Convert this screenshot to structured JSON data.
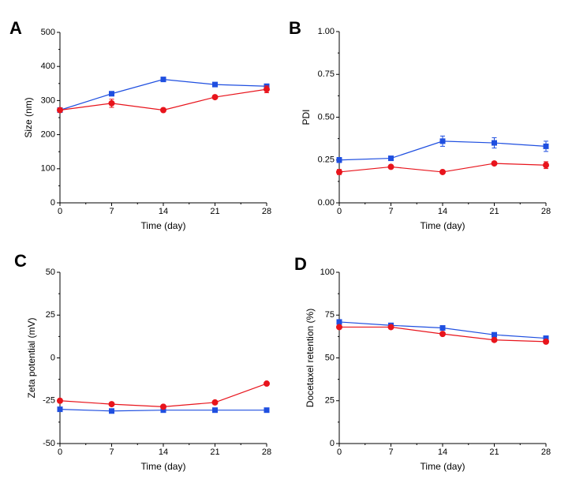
{
  "figure": {
    "colors": {
      "series_square": "#1f4fe0",
      "series_circle": "#e8141c",
      "axis": "#000000"
    }
  },
  "chart_data": [
    {
      "panel": "A",
      "type": "line",
      "title": "",
      "xlabel": "Time (day)",
      "ylabel": "Size (nm)",
      "x": [
        0,
        7,
        14,
        21,
        28
      ],
      "xlim": [
        0,
        28
      ],
      "ylim": [
        0,
        500
      ],
      "xticks": [
        "0",
        "7",
        "14",
        "21",
        "28"
      ],
      "yticks": [
        "0",
        "100",
        "200",
        "300",
        "400",
        "500"
      ],
      "ytick_values": [
        0,
        100,
        200,
        300,
        400,
        500
      ],
      "series": [
        {
          "name": "square series",
          "marker": "square",
          "color": "#1f4fe0",
          "values": [
            272,
            320,
            362,
            347,
            342
          ],
          "errors": [
            4,
            5,
            5,
            5,
            6
          ]
        },
        {
          "name": "circle series",
          "marker": "circle",
          "color": "#e8141c",
          "values": [
            272,
            292,
            272,
            310,
            333
          ],
          "errors": [
            4,
            12,
            4,
            4,
            10
          ]
        }
      ]
    },
    {
      "panel": "B",
      "type": "line",
      "title": "",
      "xlabel": "Time (day)",
      "ylabel": "PDI",
      "x": [
        0,
        7,
        14,
        21,
        28
      ],
      "xlim": [
        0,
        28
      ],
      "ylim": [
        0,
        1
      ],
      "xticks": [
        "0",
        "7",
        "14",
        "21",
        "28"
      ],
      "yticks": [
        "0.00",
        "0.25",
        "0.50",
        "0.75",
        "1.00"
      ],
      "ytick_values": [
        0,
        0.25,
        0.5,
        0.75,
        1.0
      ],
      "series": [
        {
          "name": "square series",
          "marker": "square",
          "color": "#1f4fe0",
          "values": [
            0.25,
            0.26,
            0.36,
            0.35,
            0.33
          ],
          "errors": [
            0.015,
            0.01,
            0.03,
            0.03,
            0.03
          ]
        },
        {
          "name": "circle series",
          "marker": "circle",
          "color": "#e8141c",
          "values": [
            0.18,
            0.21,
            0.18,
            0.23,
            0.22
          ],
          "errors": [
            0.015,
            0.01,
            0.01,
            0.01,
            0.02
          ]
        }
      ]
    },
    {
      "panel": "C",
      "type": "line",
      "title": "",
      "xlabel": "Time (day)",
      "ylabel": "Zeta potential (mV)",
      "x": [
        0,
        7,
        14,
        21,
        28
      ],
      "xlim": [
        0,
        28
      ],
      "ylim": [
        -50,
        50
      ],
      "xticks": [
        "0",
        "7",
        "14",
        "21",
        "28"
      ],
      "yticks": [
        "-50",
        "-25",
        "0",
        "25",
        "50"
      ],
      "ytick_values": [
        -50,
        -25,
        0,
        25,
        50
      ],
      "series": [
        {
          "name": "square series",
          "marker": "square",
          "color": "#1f4fe0",
          "values": [
            -30,
            -31,
            -30.5,
            -30.5,
            -30.5
          ],
          "errors": [
            0.5,
            0.5,
            0.5,
            0.5,
            0.5
          ]
        },
        {
          "name": "circle series",
          "marker": "circle",
          "color": "#e8141c",
          "values": [
            -25,
            -27,
            -28.5,
            -26,
            -15
          ],
          "errors": [
            0.5,
            0.5,
            0.5,
            0.5,
            0.5
          ]
        }
      ]
    },
    {
      "panel": "D",
      "type": "line",
      "title": "",
      "xlabel": "Time (day)",
      "ylabel": "Docetaxel retention (%)",
      "x": [
        0,
        7,
        14,
        21,
        28
      ],
      "xlim": [
        0,
        28
      ],
      "ylim": [
        0,
        100
      ],
      "xticks": [
        "0",
        "7",
        "14",
        "21",
        "28"
      ],
      "yticks": [
        "0",
        "25",
        "50",
        "75",
        "100"
      ],
      "ytick_values": [
        0,
        25,
        50,
        75,
        100
      ],
      "series": [
        {
          "name": "square series",
          "marker": "square",
          "color": "#1f4fe0",
          "values": [
            71,
            69,
            67.5,
            63.5,
            61.5
          ],
          "errors": [
            1,
            1,
            1,
            1,
            1
          ]
        },
        {
          "name": "circle series",
          "marker": "circle",
          "color": "#e8141c",
          "values": [
            68,
            68,
            64,
            60.5,
            59.5
          ],
          "errors": [
            1,
            1,
            1,
            1,
            1
          ]
        }
      ]
    }
  ]
}
